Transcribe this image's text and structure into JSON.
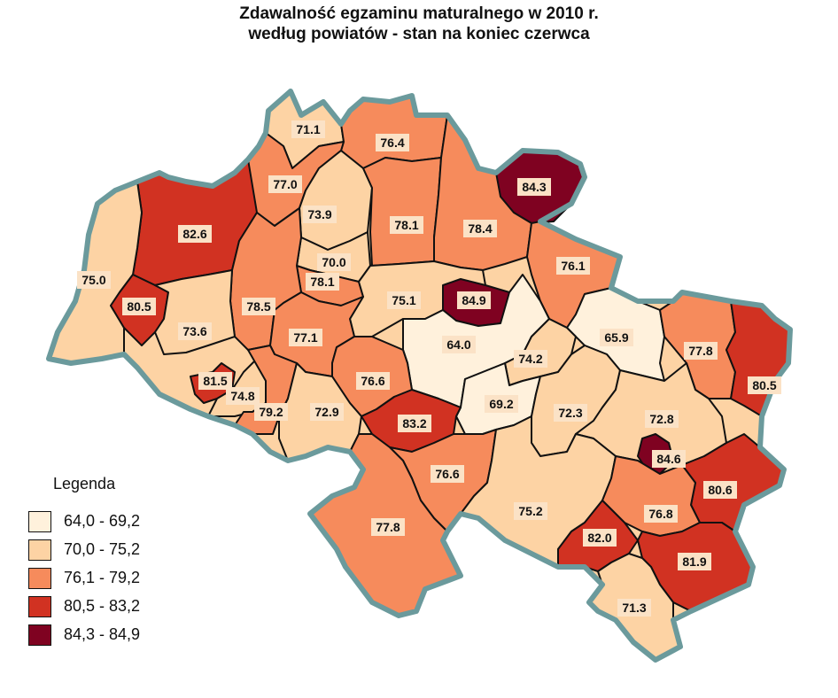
{
  "title": {
    "line1": "Zdawalność egzaminu maturalnego w 2010 r.",
    "line2": "według powiatów - stan na koniec czerwca"
  },
  "legend": {
    "title": "Legenda",
    "classes": [
      {
        "label": "64,0 - 69,2",
        "color": "#fff1dc"
      },
      {
        "label": "70,0 - 75,2",
        "color": "#fdd3a4"
      },
      {
        "label": "76,1 - 79,2",
        "color": "#f68b5c"
      },
      {
        "label": "80,5 - 83,2",
        "color": "#d13222"
      },
      {
        "label": "84,3 - 84,9",
        "color": "#7f0221"
      }
    ]
  },
  "colors": {
    "outer_border": "#6b9a9c",
    "inner_border": "#111111",
    "label_background": "#fbe2c6"
  },
  "regions": [
    {
      "id": "r01",
      "value": "71.1",
      "cls": 1
    },
    {
      "id": "r02",
      "value": "76.4",
      "cls": 2
    },
    {
      "id": "r03",
      "value": "84.3",
      "cls": 4
    },
    {
      "id": "r04",
      "value": "77.0",
      "cls": 2
    },
    {
      "id": "r05",
      "value": "73.9",
      "cls": 1
    },
    {
      "id": "r06",
      "value": "82.6",
      "cls": 3
    },
    {
      "id": "r07",
      "value": "78.1",
      "cls": 2
    },
    {
      "id": "r08",
      "value": "78.4",
      "cls": 2
    },
    {
      "id": "r09",
      "value": "70.0",
      "cls": 1
    },
    {
      "id": "r10",
      "value": "75.0",
      "cls": 1
    },
    {
      "id": "r11",
      "value": "78.1",
      "cls": 2
    },
    {
      "id": "r12",
      "value": "76.1",
      "cls": 2
    },
    {
      "id": "r13",
      "value": "80.5",
      "cls": 3
    },
    {
      "id": "r14",
      "value": "78.5",
      "cls": 2
    },
    {
      "id": "r15",
      "value": "75.1",
      "cls": 1
    },
    {
      "id": "r16",
      "value": "84.9",
      "cls": 4
    },
    {
      "id": "r17",
      "value": "73.6",
      "cls": 1
    },
    {
      "id": "r18",
      "value": "77.1",
      "cls": 2
    },
    {
      "id": "r19",
      "value": "64.0",
      "cls": 0
    },
    {
      "id": "r20",
      "value": "65.9",
      "cls": 0
    },
    {
      "id": "r21",
      "value": "77.8",
      "cls": 2
    },
    {
      "id": "r22",
      "value": "74.2",
      "cls": 1
    },
    {
      "id": "r23",
      "value": "81.5",
      "cls": 3
    },
    {
      "id": "r24",
      "value": "74.8",
      "cls": 1
    },
    {
      "id": "r25",
      "value": "76.6",
      "cls": 2
    },
    {
      "id": "r26",
      "value": "80.5",
      "cls": 3
    },
    {
      "id": "r27",
      "value": "79.2",
      "cls": 2
    },
    {
      "id": "r28",
      "value": "72.9",
      "cls": 1
    },
    {
      "id": "r29",
      "value": "69.2",
      "cls": 0
    },
    {
      "id": "r30",
      "value": "72.3",
      "cls": 1
    },
    {
      "id": "r31",
      "value": "83.2",
      "cls": 3
    },
    {
      "id": "r32",
      "value": "72.8",
      "cls": 1
    },
    {
      "id": "r33",
      "value": "84.6",
      "cls": 4
    },
    {
      "id": "r34",
      "value": "76.6",
      "cls": 2
    },
    {
      "id": "r35",
      "value": "80.6",
      "cls": 3
    },
    {
      "id": "r36",
      "value": "75.2",
      "cls": 1
    },
    {
      "id": "r37",
      "value": "76.8",
      "cls": 2
    },
    {
      "id": "r38",
      "value": "77.8",
      "cls": 2
    },
    {
      "id": "r39",
      "value": "82.0",
      "cls": 3
    },
    {
      "id": "r40",
      "value": "81.9",
      "cls": 3
    },
    {
      "id": "r41",
      "value": "71.3",
      "cls": 1
    }
  ]
}
